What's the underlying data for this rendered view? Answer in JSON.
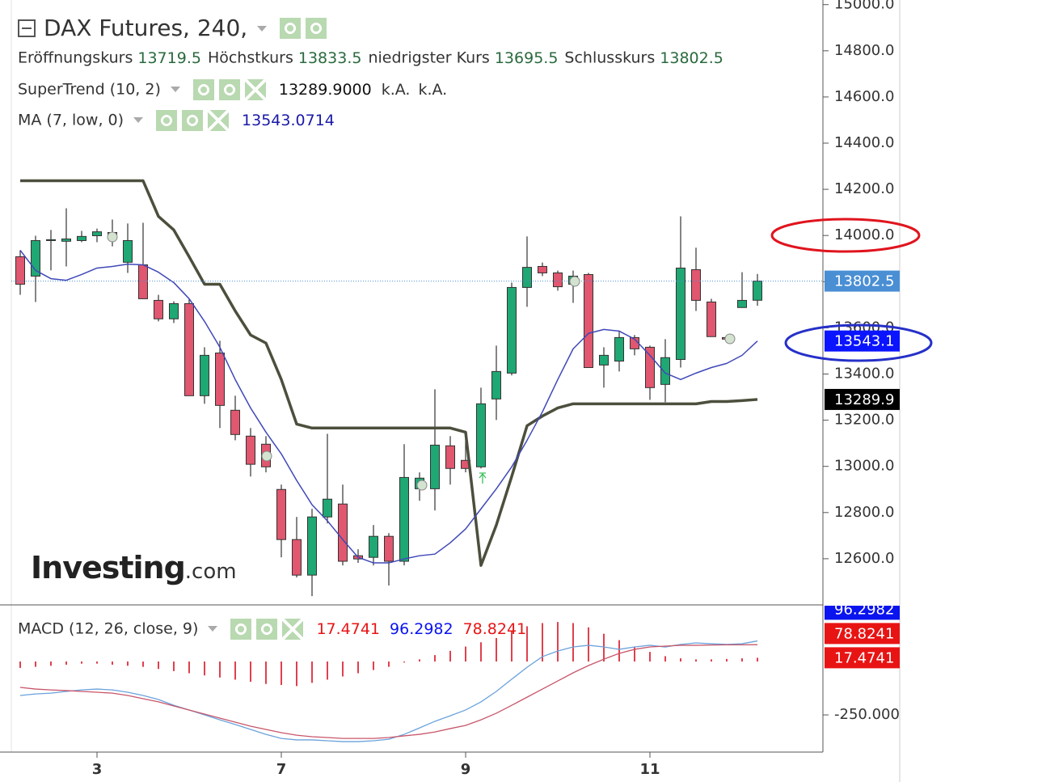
{
  "chart_data": [
    {
      "type": "candlestick",
      "title": "DAX Futures, 240,",
      "ohlc_names": [
        "Eröffnungskurs",
        "Höchstkurs",
        "niedrigster Kurs",
        "Schlusskurs"
      ],
      "categories": [
        null,
        null,
        null,
        null,
        null,
        "3",
        null,
        null,
        null,
        null,
        null,
        null,
        null,
        null,
        null,
        null,
        null,
        "7",
        null,
        null,
        null,
        null,
        null,
        null,
        null,
        null,
        null,
        null,
        null,
        "9",
        null,
        null,
        null,
        null,
        null,
        null,
        null,
        null,
        null,
        null,
        null,
        "11",
        null,
        null,
        null,
        null,
        null,
        null,
        null
      ],
      "open": [
        13908,
        13824,
        13978,
        13975,
        13978,
        13999,
        14013,
        13884,
        13873,
        13719,
        13639,
        13705,
        13306,
        13491,
        13243,
        13131,
        13096,
        12900,
        12683,
        12529,
        12781,
        12837,
        12613,
        12606,
        12697,
        12589,
        12903,
        12903,
        13089,
        13026,
        12998,
        13292,
        13404,
        13775,
        13866,
        13838,
        13789,
        13831,
        13439,
        13456,
        13558,
        13516,
        13355,
        13463,
        13852,
        13712,
        13558,
        13688,
        13719.5
      ],
      "high": [
        13936,
        13999,
        14024,
        14118,
        14020,
        14030,
        14069,
        14052,
        14055,
        13743,
        13715,
        13726,
        13516,
        13544,
        13306,
        13166,
        13131,
        12921,
        12781,
        12816,
        13141,
        12921,
        12641,
        12746,
        12711,
        13096,
        12974,
        13334,
        13131,
        13131,
        13341,
        13523,
        13796,
        13996,
        13883,
        13848,
        13848,
        13838,
        13516,
        13586,
        13569,
        13523,
        13551,
        14083,
        13947,
        13726,
        13565,
        13841,
        13833.5
      ],
      "low": [
        13743,
        13712,
        13849,
        13866,
        13971,
        13971,
        13953,
        13838,
        13726,
        13628,
        13621,
        13306,
        13271,
        13166,
        13113,
        12956,
        12974,
        12606,
        12519,
        12438,
        12753,
        12571,
        12582,
        12571,
        12484,
        12571,
        12851,
        12809,
        12921,
        12974,
        12991,
        13201,
        13394,
        13691,
        13824,
        13761,
        13708,
        13428,
        13341,
        13411,
        13481,
        13288,
        13278,
        13428,
        13673,
        13562,
        13545,
        13688,
        13695.5
      ],
      "close": [
        13789,
        13978,
        13982,
        13985,
        13996,
        14016,
        13988,
        13978,
        13726,
        13639,
        13705,
        13306,
        13481,
        13264,
        13138,
        13009,
        12998,
        12683,
        12529,
        12781,
        12858,
        12589,
        12599,
        12697,
        12589,
        12952,
        12949,
        13092,
        12991,
        12991,
        13271,
        13411,
        13775,
        13862,
        13838,
        13778,
        13824,
        13428,
        13481,
        13558,
        13509,
        13341,
        13471,
        13859,
        13719,
        13562,
        13551,
        13719,
        13802.5
      ],
      "up_color": "#1fa874",
      "down_color": "#e0576f",
      "last_price_color": "#4a8fd4",
      "ylim": [
        12400,
        15020
      ],
      "yticks": [
        {
          "value": 12600,
          "label": "12600.0"
        },
        {
          "value": 12800,
          "label": "12800.0"
        },
        {
          "value": 13000,
          "label": "13000.0"
        },
        {
          "value": 13200,
          "label": "13200.0"
        },
        {
          "value": 13400,
          "label": "13400.0"
        },
        {
          "value": 13600,
          "label": "13600.0"
        },
        {
          "value": 13800,
          "label": "13800.0"
        },
        {
          "value": 14000,
          "label": "14000.0"
        },
        {
          "value": 14200,
          "label": "14200.0"
        },
        {
          "value": 14400,
          "label": "14400.0"
        },
        {
          "value": 14600,
          "label": "14600.0"
        },
        {
          "value": 14800,
          "label": "14800.0"
        },
        {
          "value": 15000,
          "label": "15000.0"
        }
      ],
      "series": [
        {
          "name": "SuperTrend (10, 2)",
          "color": "#4b4f3c",
          "box_color": "#000000",
          "last_label": "13289.9000",
          "extra_labels": [
            "k.A.",
            "k.A."
          ],
          "values": [
            14237,
            14237,
            14237,
            14237,
            14237,
            14237,
            14237,
            14237,
            14237,
            14083,
            14024,
            13908,
            13789,
            13789,
            13673,
            13569,
            13534,
            13376,
            13183,
            13166,
            13166,
            13166,
            13166,
            13166,
            13166,
            13166,
            13166,
            13166,
            13166,
            13148,
            12571,
            12746,
            12956,
            13176,
            13218,
            13253,
            13271,
            13271,
            13271,
            13271,
            13271,
            13271,
            13271,
            13271,
            13271,
            13281,
            13281,
            13285,
            13289.9
          ]
        },
        {
          "name": "MA (7, low, 0)",
          "color": "#3f48b8",
          "box_color": "#0a14ff",
          "box_label": "13543.1",
          "values": [
            13936,
            13849,
            13813,
            13806,
            13831,
            13859,
            13866,
            13876,
            13873,
            13841,
            13796,
            13726,
            13628,
            13516,
            13376,
            13253,
            13148,
            13054,
            12939,
            12834,
            12764,
            12683,
            12606,
            12582,
            12582,
            12599,
            12613,
            12620,
            12669,
            12729,
            12816,
            12903,
            12998,
            13113,
            13236,
            13376,
            13509,
            13576,
            13593,
            13586,
            13551,
            13481,
            13404,
            13376,
            13404,
            13428,
            13446,
            13481,
            13543.0714
          ]
        }
      ],
      "watermark": [
        "Investing",
        ".com"
      ]
    },
    {
      "type": "macd_panel",
      "title": "MACD (12, 26, close, 9)",
      "ylim": [
        -424,
        265
      ],
      "yticks": [
        {
          "value": -250,
          "label": "-250.000"
        }
      ],
      "series": [
        {
          "style": "histogram",
          "color": "#e0404e",
          "label_color": "#e81414",
          "values": [
            -30,
            -25,
            -20,
            -15,
            -10,
            -10,
            -15,
            -20,
            -25,
            -35,
            -45,
            -55,
            -65,
            -75,
            -85,
            -95,
            -105,
            -110,
            -115,
            -100,
            -85,
            -70,
            -55,
            -40,
            -25,
            -5,
            10,
            30,
            50,
            70,
            90,
            110,
            140,
            165,
            180,
            185,
            180,
            160,
            130,
            100,
            70,
            45,
            25,
            15,
            10,
            10,
            12,
            15,
            17.4741
          ]
        },
        {
          "style": "line",
          "color": "#6aa2dc",
          "label_color": "#0a14ee",
          "values": [
            -159,
            -152,
            -148,
            -140,
            -133,
            -129,
            -133,
            -144,
            -159,
            -178,
            -205,
            -227,
            -250,
            -273,
            -295,
            -318,
            -341,
            -360,
            -367,
            -367,
            -371,
            -375,
            -375,
            -371,
            -364,
            -341,
            -311,
            -280,
            -254,
            -227,
            -189,
            -140,
            -83,
            -27,
            23,
            49,
            68,
            76,
            68,
            57,
            68,
            76,
            68,
            80,
            87,
            83,
            80,
            83,
            96.2982
          ]
        },
        {
          "style": "line",
          "color": "#c8566a",
          "label_color": "#e81414",
          "values": [
            -121,
            -129,
            -133,
            -136,
            -140,
            -144,
            -148,
            -159,
            -174,
            -189,
            -208,
            -227,
            -246,
            -265,
            -284,
            -303,
            -318,
            -333,
            -345,
            -352,
            -356,
            -360,
            -360,
            -360,
            -356,
            -348,
            -341,
            -330,
            -314,
            -299,
            -273,
            -242,
            -205,
            -167,
            -129,
            -91,
            -53,
            -19,
            11,
            38,
            57,
            68,
            72,
            76,
            76,
            77,
            78,
            78,
            78.8241
          ]
        }
      ]
    }
  ]
}
